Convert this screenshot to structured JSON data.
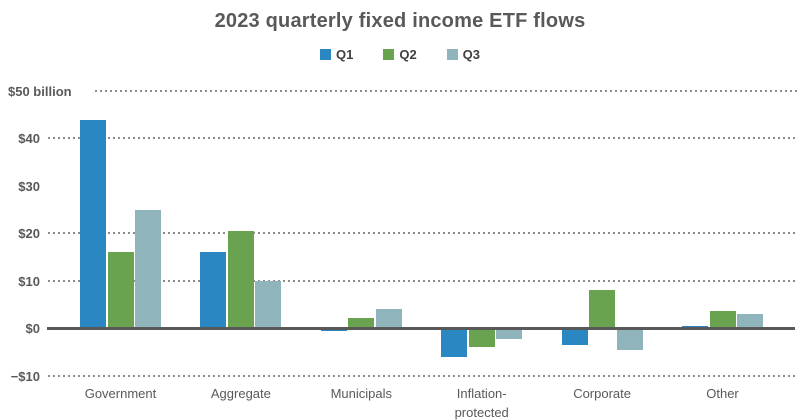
{
  "chart_data": {
    "type": "bar",
    "title": "2023 quarterly fixed income ETF flows",
    "unit": "USD billions",
    "categories": [
      "Government",
      "Aggregate",
      "Municipals",
      "Inflation-\nprotected",
      "Corporate",
      "Other"
    ],
    "series": [
      {
        "name": "Q1",
        "color": "#2B87C1",
        "values": [
          43.7,
          16.0,
          -0.7,
          -6.0,
          -3.5,
          0.5
        ]
      },
      {
        "name": "Q2",
        "color": "#69A350",
        "values": [
          16.0,
          20.5,
          2.2,
          -4.0,
          8.0,
          3.5
        ]
      },
      {
        "name": "Q3",
        "color": "#8FB4BB",
        "values": [
          24.8,
          10.0,
          3.9,
          -2.3,
          -4.7,
          2.9
        ]
      }
    ],
    "ylim": [
      -13,
      51
    ],
    "grid": "dotted horizontal, none at 30",
    "legend_position": "top center",
    "y_axis": {
      "ticks": [
        {
          "value": 50,
          "label": "$50 billion",
          "grid": true
        },
        {
          "value": 40,
          "label": "$40",
          "grid": true
        },
        {
          "value": 30,
          "label": "$30",
          "grid": false
        },
        {
          "value": 20,
          "label": "$20",
          "grid": true
        },
        {
          "value": 10,
          "label": "$10",
          "grid": true
        },
        {
          "value": 0,
          "label": "$0",
          "grid": false
        },
        {
          "value": -10,
          "label": "−$10",
          "grid": true
        }
      ]
    }
  },
  "colors": {
    "title_text": "#58595B",
    "axis_text": "#595959",
    "category_text": "#595959",
    "gridline": "#8C8C8C",
    "zero_line": "#595959",
    "background": "#FFFFFF"
  }
}
